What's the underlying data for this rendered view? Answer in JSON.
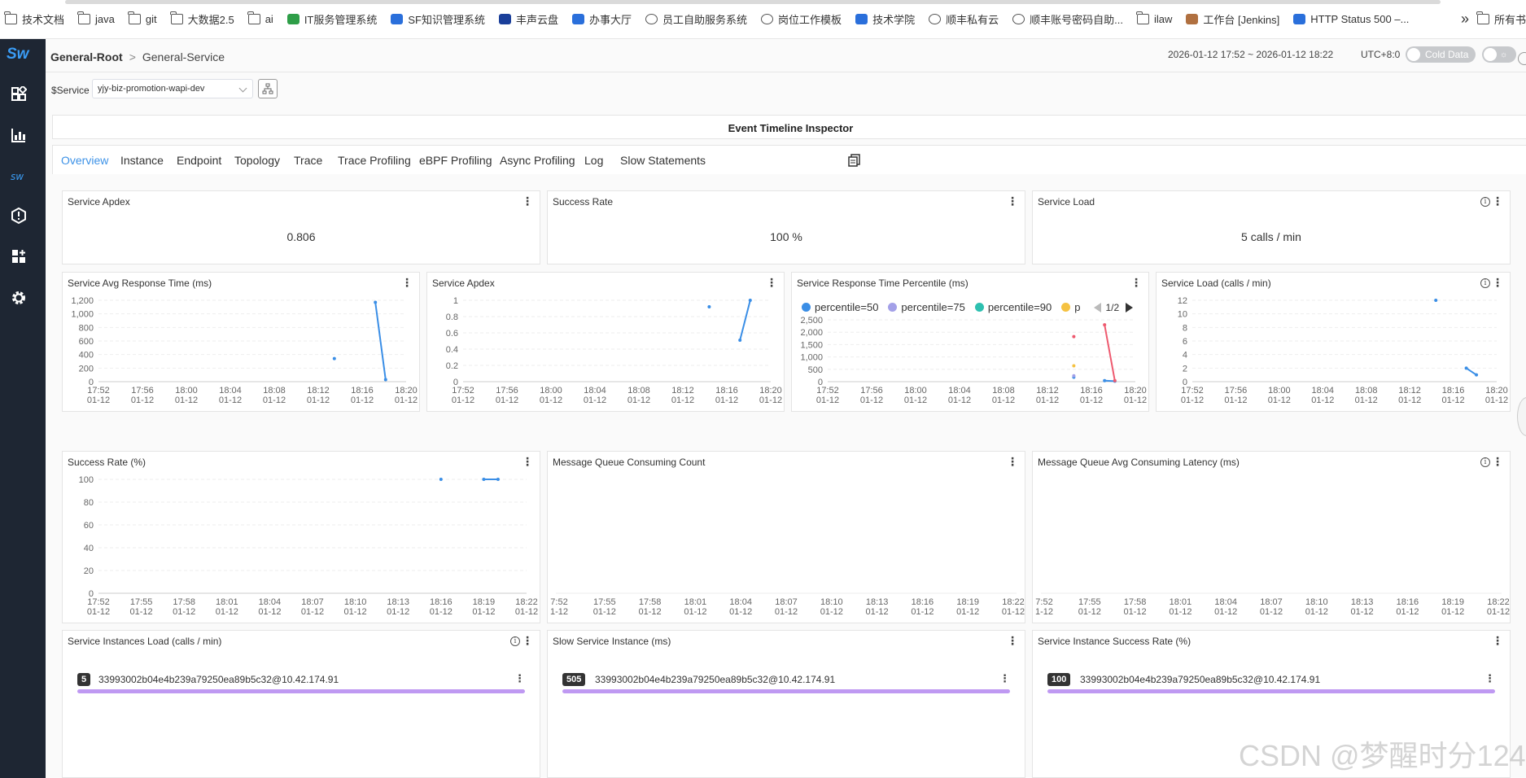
{
  "bookmarks": [
    {
      "label": "技术文档",
      "icon": "folder-icon",
      "color": "#555555"
    },
    {
      "label": "java",
      "icon": "folder-icon",
      "color": "#555555"
    },
    {
      "label": "git",
      "icon": "folder-icon",
      "color": "#555555"
    },
    {
      "label": "大数据2.5",
      "icon": "folder-icon",
      "color": "#555555"
    },
    {
      "label": "ai",
      "icon": "folder-icon",
      "color": "#555555"
    },
    {
      "label": "IT服务管理系统",
      "icon": "person-icon",
      "color": "#2e9e48"
    },
    {
      "label": "SF知识管理系统",
      "icon": "sf-icon",
      "color": "#2a6fdb"
    },
    {
      "label": "丰声云盘",
      "icon": "z-icon",
      "color": "#1a3f9a"
    },
    {
      "label": "办事大厅",
      "icon": "building-icon",
      "color": "#2a6fdb"
    },
    {
      "label": "员工自助服务系统",
      "icon": "globe-icon",
      "color": "#555555"
    },
    {
      "label": "岗位工作模板",
      "icon": "globe-icon",
      "color": "#555555"
    },
    {
      "label": "技术学院",
      "icon": "book-icon",
      "color": "#2a6fdb"
    },
    {
      "label": "顺丰私有云",
      "icon": "globe-icon",
      "color": "#555555"
    },
    {
      "label": "顺丰账号密码自助...",
      "icon": "globe-icon",
      "color": "#555555"
    },
    {
      "label": "ilaw",
      "icon": "folder-icon",
      "color": "#555555"
    },
    {
      "label": "工作台 [Jenkins]",
      "icon": "jenkins-icon",
      "color": "#b07040"
    },
    {
      "label": "HTTP Status 500 –...",
      "icon": "x-icon",
      "color": "#2a6fdb"
    }
  ],
  "bookmarks_more": "»",
  "bookmarks_overflow": "所有书",
  "sidebar": {
    "logo": "Sw",
    "items": [
      {
        "icon": "dashboard-icon"
      },
      {
        "icon": "bar-chart-icon"
      },
      {
        "icon": "sw-logo-icon"
      },
      {
        "icon": "alarm-icon"
      },
      {
        "icon": "widgets-icon"
      },
      {
        "icon": "gear-icon"
      }
    ]
  },
  "header": {
    "breadcrumb_root": "General-Root",
    "breadcrumb_sep": ">",
    "breadcrumb_service": "General-Service",
    "time_range": "2026-01-12 17:52 ~ 2026-01-12 18:22",
    "utc": "UTC+8:0",
    "cold_data": "Cold Data"
  },
  "service_bar": {
    "label": "$Service",
    "selected": "yjy-biz-promotion-wapi-dev"
  },
  "event_title": "Event Timeline Inspector",
  "tabs": [
    "Overview",
    "Instance",
    "Endpoint",
    "Topology",
    "Trace",
    "Trace Profiling",
    "eBPF Profiling",
    "Async Profiling",
    "Log",
    "Slow Statements"
  ],
  "active_tab": "Overview",
  "cards": {
    "apdex_value": {
      "title": "Service Apdex",
      "value": "0.806"
    },
    "success_value": {
      "title": "Success Rate",
      "value": "100 %"
    },
    "load_value": {
      "title": "Service Load",
      "value": "5 calls / min"
    },
    "inst_load": {
      "title": "Service Instances Load (calls / min)",
      "badge": "5",
      "name": "33993002b04e4b239a79250ea89b5c32@10.42.174.91"
    },
    "slow_inst": {
      "title": "Slow Service Instance (ms)",
      "badge": "505",
      "name": "33993002b04e4b239a79250ea89b5c32@10.42.174.91"
    },
    "inst_success": {
      "title": "Service Instance Success Rate (%)",
      "badge": "100",
      "name": "33993002b04e4b239a79250ea89b5c32@10.42.174.91"
    }
  },
  "watermark": "CSDN @梦醒时分124",
  "chart_data": [
    {
      "id": "avg_resp",
      "title": "Service Avg Response Time (ms)",
      "type": "line",
      "info": false,
      "x_ticks": [
        "17:52|01-12",
        "17:56|01-12",
        "18:00|01-12",
        "18:04|01-12",
        "18:08|01-12",
        "18:12|01-12",
        "18:16|01-12",
        "18:20|01-12"
      ],
      "y_ticks": [
        "0",
        "200",
        "400",
        "600",
        "800",
        "1,000",
        "1,200"
      ],
      "ylim": [
        0,
        1200
      ],
      "x_start": "17:52",
      "x_end": "18:22",
      "series": [
        {
          "color": "#3a8ee6",
          "points": [
            [
              "18:15",
              340
            ]
          ],
          "segments": [
            [
              [
                "18:19",
                1170
              ],
              [
                "18:20",
                30
              ]
            ]
          ]
        }
      ]
    },
    {
      "id": "apdex",
      "title": "Service Apdex",
      "type": "line",
      "info": false,
      "x_ticks": [
        "17:52|01-12",
        "17:56|01-12",
        "18:00|01-12",
        "18:04|01-12",
        "18:08|01-12",
        "18:12|01-12",
        "18:16|01-12",
        "18:20|01-12"
      ],
      "y_ticks": [
        "0",
        "0.2",
        "0.4",
        "0.6",
        "0.8",
        "1"
      ],
      "ylim": [
        0,
        1
      ],
      "x_start": "17:52",
      "x_end": "18:22",
      "series": [
        {
          "color": "#3a8ee6",
          "points": [
            [
              "18:16",
              0.92
            ]
          ],
          "segments": [
            [
              [
                "18:19",
                0.51
              ],
              [
                "18:20",
                1.0
              ]
            ]
          ]
        }
      ]
    },
    {
      "id": "percentile",
      "title": "Service Response Time Percentile (ms)",
      "type": "line",
      "info": false,
      "legend": [
        {
          "name": "percentile=50",
          "color": "#3a8ee6"
        },
        {
          "name": "percentile=75",
          "color": "#a3a0e8"
        },
        {
          "name": "percentile=90",
          "color": "#2ec0b0"
        },
        {
          "name": "p",
          "color": "#f5c242"
        }
      ],
      "legend_page": "1/2",
      "x_ticks": [
        "17:52|01-12",
        "17:56|01-12",
        "18:00|01-12",
        "18:04|01-12",
        "18:08|01-12",
        "18:12|01-12",
        "18:16|01-12",
        "18:20|01-12"
      ],
      "y_ticks": [
        "0",
        "500",
        "1,000",
        "1,500",
        "2,000",
        "2,500"
      ],
      "ylim": [
        0,
        2500
      ],
      "x_start": "17:52",
      "x_end": "18:22",
      "series": [
        {
          "color": "#3a8ee6",
          "points": [
            [
              "18:16",
              180
            ]
          ],
          "segments": [
            [
              [
                "18:19",
                40
              ],
              [
                "18:20",
                20
              ]
            ]
          ]
        },
        {
          "color": "#a3a0e8",
          "points": [
            [
              "18:16",
              240
            ]
          ],
          "segments": []
        },
        {
          "color": "#f5c242",
          "points": [
            [
              "18:16",
              640
            ]
          ],
          "segments": []
        },
        {
          "color": "#ee5a6f",
          "points": [
            [
              "18:16",
              1820
            ]
          ],
          "segments": [
            [
              [
                "18:19",
                2300
              ],
              [
                "18:20",
                40
              ]
            ]
          ]
        }
      ]
    },
    {
      "id": "load",
      "title": "Service Load (calls / min)",
      "type": "line",
      "info": true,
      "x_ticks": [
        "17:52|01-12",
        "17:56|01-12",
        "18:00|01-12",
        "18:04|01-12",
        "18:08|01-12",
        "18:12|01-12",
        "18:16|01-12",
        "18:20|01-12"
      ],
      "y_ticks": [
        "0",
        "2",
        "4",
        "6",
        "8",
        "10",
        "12"
      ],
      "ylim": [
        0,
        12
      ],
      "x_start": "17:52",
      "x_end": "18:22",
      "series": [
        {
          "color": "#3a8ee6",
          "points": [
            [
              "18:16",
              12
            ]
          ],
          "segments": [
            [
              [
                "18:19",
                2
              ],
              [
                "18:20",
                1
              ]
            ]
          ]
        }
      ]
    },
    {
      "id": "success",
      "title": "Success Rate (%)",
      "type": "line",
      "info": false,
      "x_ticks": [
        "17:52|01-12",
        "17:55|01-12",
        "17:58|01-12",
        "18:01|01-12",
        "18:04|01-12",
        "18:07|01-12",
        "18:10|01-12",
        "18:13|01-12",
        "18:16|01-12",
        "18:19|01-12",
        "18:22|01-12"
      ],
      "y_ticks": [
        "0",
        "20",
        "40",
        "60",
        "80",
        "100"
      ],
      "ylim": [
        0,
        100
      ],
      "x_start": "17:52",
      "x_end": "18:22",
      "series": [
        {
          "color": "#3a8ee6",
          "points": [
            [
              "18:16",
              100
            ]
          ],
          "segments": [
            [
              [
                "18:19",
                100
              ],
              [
                "18:20",
                100
              ]
            ]
          ]
        }
      ]
    },
    {
      "id": "mq_count",
      "title": "Message Queue Consuming Count",
      "type": "line",
      "info": false,
      "x_ticks": [
        "7:52|1-12",
        "17:55|01-12",
        "17:58|01-12",
        "18:01|01-12",
        "18:04|01-12",
        "18:07|01-12",
        "18:10|01-12",
        "18:13|01-12",
        "18:16|01-12",
        "18:19|01-12",
        "18:22|01-12"
      ],
      "y_ticks": [],
      "x_start": "17:52",
      "x_end": "18:22",
      "series": []
    },
    {
      "id": "mq_latency",
      "title": "Message Queue Avg Consuming Latency (ms)",
      "type": "line",
      "info": true,
      "x_ticks": [
        "7:52|1-12",
        "17:55|01-12",
        "17:58|01-12",
        "18:01|01-12",
        "18:04|01-12",
        "18:07|01-12",
        "18:10|01-12",
        "18:13|01-12",
        "18:16|01-12",
        "18:19|01-12",
        "18:22|01-12"
      ],
      "y_ticks": [],
      "x_start": "17:52",
      "x_end": "18:22",
      "series": []
    }
  ]
}
